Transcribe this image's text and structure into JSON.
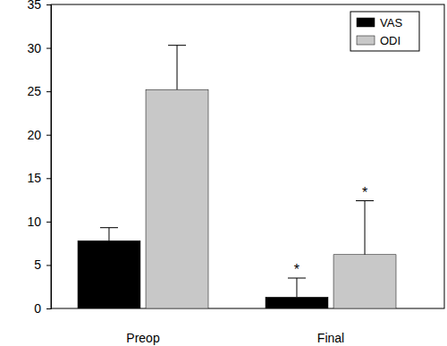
{
  "chart_data": {
    "type": "bar",
    "categories": [
      "Preop",
      "Final"
    ],
    "series": [
      {
        "name": "VAS",
        "color": "#000000",
        "values": [
          7.8,
          1.3
        ],
        "errors": [
          1.5,
          2.2
        ],
        "significance": [
          null,
          "*"
        ]
      },
      {
        "name": "ODI",
        "color": "#c8c8c8",
        "values": [
          25.2,
          6.2
        ],
        "errors": [
          5.1,
          6.2
        ],
        "significance": [
          null,
          "*"
        ]
      }
    ],
    "ylim": [
      0,
      35
    ],
    "yticks": [
      0,
      5,
      10,
      15,
      20,
      25,
      30,
      35
    ],
    "legend": "upper right",
    "grid": false
  }
}
